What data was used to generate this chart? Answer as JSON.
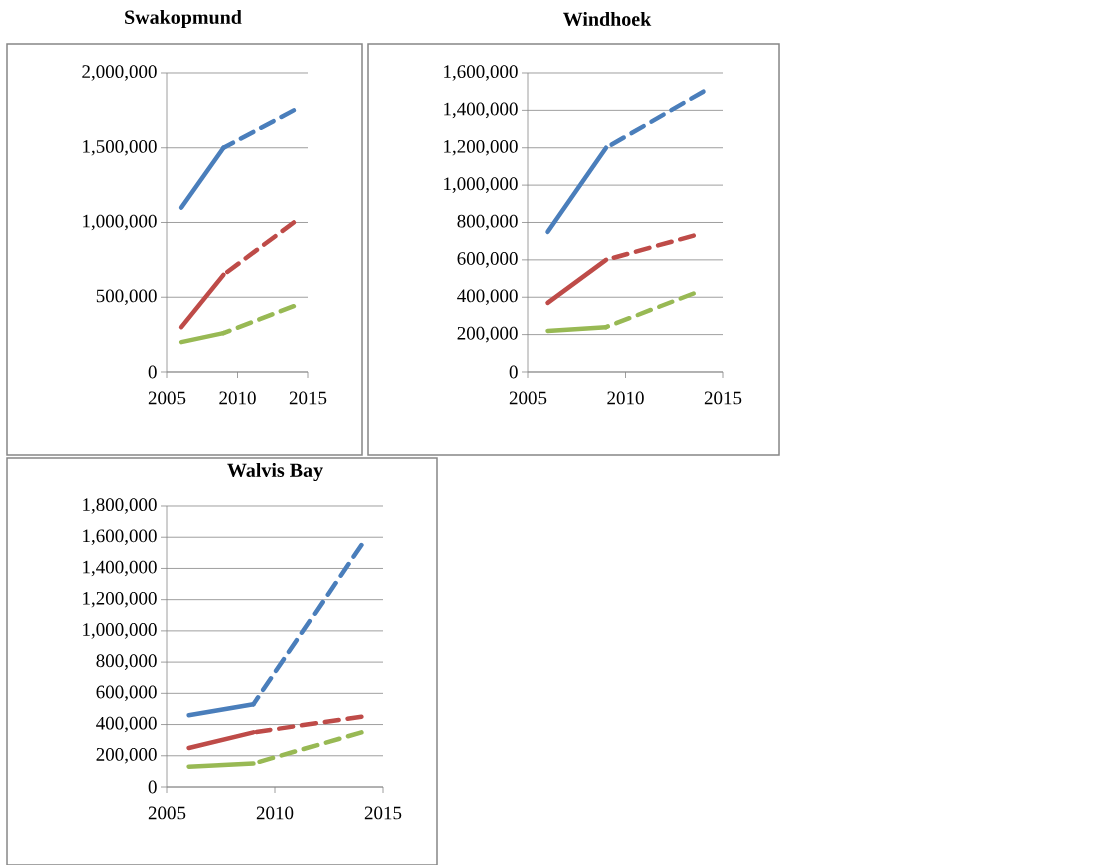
{
  "chart_data": [
    {
      "type": "line",
      "title": "Swakopmund",
      "xlim": [
        2005,
        2015
      ],
      "xticks": [
        2005,
        2010,
        2015
      ],
      "ylim": [
        0,
        2000000
      ],
      "yticks": [
        0,
        {
          "value": 500000,
          "label": "500,000"
        },
        {
          "value": 1000000,
          "label": "1,000,000"
        },
        {
          "value": 1500000,
          "label": "1,500,000"
        },
        {
          "value": 2000000,
          "label": "2,000,000"
        }
      ],
      "grid": "y",
      "series": [
        {
          "color": "#4a7ebb",
          "line_style": "solid",
          "x": [
            2006,
            2009
          ],
          "values": [
            1100000,
            1500000
          ]
        },
        {
          "color": "#4a7ebb",
          "line_style": "dashed",
          "x": [
            2009,
            2014
          ],
          "values": [
            1500000,
            1750000
          ]
        },
        {
          "color": "#be4b48",
          "line_style": "solid",
          "x": [
            2006,
            2009
          ],
          "values": [
            300000,
            650000
          ]
        },
        {
          "color": "#be4b48",
          "line_style": "dashed",
          "x": [
            2009,
            2014
          ],
          "values": [
            650000,
            1000000
          ]
        },
        {
          "color": "#98b954",
          "line_style": "solid",
          "x": [
            2006,
            2009
          ],
          "values": [
            200000,
            260000
          ]
        },
        {
          "color": "#98b954",
          "line_style": "dashed",
          "x": [
            2009,
            2014
          ],
          "values": [
            260000,
            440000
          ]
        }
      ]
    },
    {
      "type": "line",
      "title": "Windhoek",
      "xlim": [
        2005,
        2015
      ],
      "xticks": [
        2005,
        2010,
        2015
      ],
      "ylim": [
        0,
        1600000
      ],
      "yticks": [
        0,
        {
          "value": 200000,
          "label": "200,000"
        },
        {
          "value": 400000,
          "label": "400,000"
        },
        {
          "value": 600000,
          "label": "600,000"
        },
        {
          "value": 800000,
          "label": "800,000"
        },
        {
          "value": 1000000,
          "label": "1,000,000"
        },
        {
          "value": 1200000,
          "label": "1,200,000"
        },
        {
          "value": 1400000,
          "label": "1,400,000"
        },
        {
          "value": 1600000,
          "label": "1,600,000"
        }
      ],
      "grid": "y",
      "series": [
        {
          "color": "#4a7ebb",
          "line_style": "solid",
          "x": [
            2006,
            2009
          ],
          "values": [
            750000,
            1200000
          ]
        },
        {
          "color": "#4a7ebb",
          "line_style": "dashed",
          "x": [
            2009,
            2014
          ],
          "values": [
            1200000,
            1500000
          ]
        },
        {
          "color": "#be4b48",
          "line_style": "solid",
          "x": [
            2006,
            2009
          ],
          "values": [
            370000,
            600000
          ]
        },
        {
          "color": "#be4b48",
          "line_style": "dashed",
          "x": [
            2009,
            2013.5
          ],
          "values": [
            600000,
            730000
          ]
        },
        {
          "color": "#98b954",
          "line_style": "solid",
          "x": [
            2006,
            2009
          ],
          "values": [
            220000,
            240000
          ]
        },
        {
          "color": "#98b954",
          "line_style": "dashed",
          "x": [
            2009,
            2013.5
          ],
          "values": [
            240000,
            420000
          ]
        }
      ]
    },
    {
      "type": "line",
      "title": "Walvis Bay",
      "xlim": [
        2005,
        2015
      ],
      "xticks": [
        2005,
        2010,
        2015
      ],
      "ylim": [
        0,
        1800000
      ],
      "yticks": [
        0,
        {
          "value": 200000,
          "label": "200,000"
        },
        {
          "value": 400000,
          "label": "400,000"
        },
        {
          "value": 600000,
          "label": "600,000"
        },
        {
          "value": 800000,
          "label": "800,000"
        },
        {
          "value": 1000000,
          "label": "1,000,000"
        },
        {
          "value": 1200000,
          "label": "1,200,000"
        },
        {
          "value": 1400000,
          "label": "1,400,000"
        },
        {
          "value": 1600000,
          "label": "1,600,000"
        },
        {
          "value": 1800000,
          "label": "1,800,000"
        }
      ],
      "grid": "y",
      "series": [
        {
          "color": "#4a7ebb",
          "line_style": "solid",
          "x": [
            2006,
            2009
          ],
          "values": [
            460000,
            530000
          ]
        },
        {
          "color": "#4a7ebb",
          "line_style": "dashed",
          "x": [
            2009,
            2014
          ],
          "values": [
            530000,
            1550000
          ]
        },
        {
          "color": "#be4b48",
          "line_style": "solid",
          "x": [
            2006,
            2009
          ],
          "values": [
            250000,
            350000
          ]
        },
        {
          "color": "#be4b48",
          "line_style": "dashed",
          "x": [
            2009,
            2014
          ],
          "values": [
            350000,
            450000
          ]
        },
        {
          "color": "#98b954",
          "line_style": "solid",
          "x": [
            2006,
            2009
          ],
          "values": [
            130000,
            150000
          ]
        },
        {
          "color": "#98b954",
          "line_style": "dashed",
          "x": [
            2009,
            2014
          ],
          "values": [
            150000,
            350000
          ]
        }
      ]
    }
  ]
}
